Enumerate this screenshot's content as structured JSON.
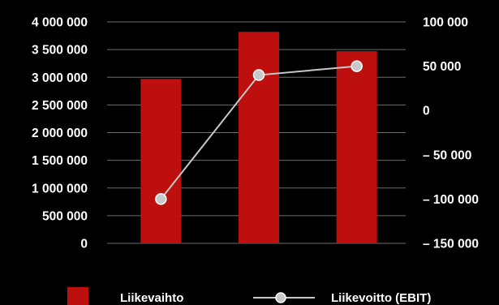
{
  "chart_data": {
    "type": "bar",
    "title": "",
    "categories": [
      "",
      "",
      ""
    ],
    "left_axis": {
      "ylim": [
        0,
        4000000
      ],
      "ticks": [
        0,
        500000,
        1000000,
        1500000,
        2000000,
        2500000,
        3000000,
        3500000,
        4000000
      ],
      "tick_labels": [
        "0",
        "500 000",
        "1 000 000",
        "1 500 000",
        "2 000 000",
        "2 500 000",
        "3 000 000",
        "3 500 000",
        "4 000 000"
      ]
    },
    "right_axis": {
      "ylim": [
        -150000,
        100000
      ],
      "ticks": [
        -150000,
        -100000,
        -50000,
        0,
        50000,
        100000
      ],
      "tick_labels": [
        "– 150 000",
        "– 100 000",
        "– 50 000",
        "0",
        "50 000",
        "100 000"
      ]
    },
    "grid": true,
    "legend_position": "bottom",
    "series": [
      {
        "name": "Liikevaihto",
        "type": "bar",
        "axis": "left",
        "color": "#be0f0f",
        "values": [
          2970000,
          3820000,
          3470000
        ]
      },
      {
        "name": "Liikevoitto (EBIT)",
        "type": "line",
        "axis": "right",
        "color": "#c8c8c8",
        "values": [
          -100000,
          40000,
          50000
        ]
      }
    ]
  }
}
